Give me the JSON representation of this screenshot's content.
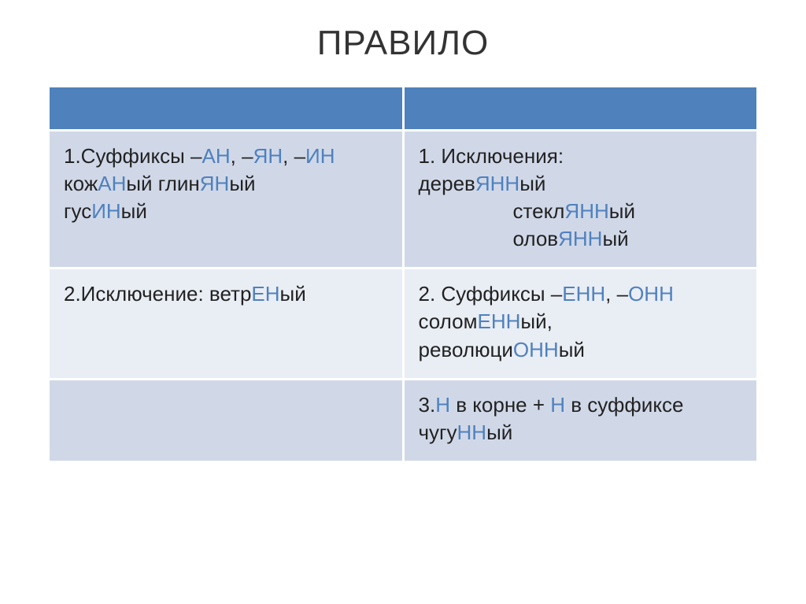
{
  "title": {
    "text": "ПРАВИЛО",
    "fontsize": 44,
    "color": "#333333"
  },
  "table": {
    "border_color": "#ffffff",
    "border_width": 3,
    "header_bg": "#4f81bd",
    "body_bg_a": "#d0d8e8",
    "body_bg_b": "#e9edf4",
    "text_color": "#222222",
    "highlight_color": "#4f81bd",
    "cell_fontsize": 26,
    "cell_padding": "14px 16px 18px 18px",
    "columns": 2,
    "column_widths": [
      "50%",
      "50%"
    ]
  },
  "rows": {
    "r1c1": {
      "line1a": "1.Суффиксы –",
      "line1_an": "АН",
      "line1b": ", –",
      "line1_yan": "ЯН",
      "line1c": ", –",
      "line1_in": "ИН",
      "line2a": "кож",
      "line2_an": "АН",
      "line2b": "ый   глин",
      "line2_yan": "ЯН",
      "line2c": "ый",
      "line3a": "гус",
      "line3_in": "ИН",
      "line3b": "ый"
    },
    "r1c2": {
      "line1": "1. Исключения:",
      "line2a": "дерев",
      "line2_hl": "ЯНН",
      "line2b": "ый",
      "line3a": "стекл",
      "line3_hl": "ЯНН",
      "line3b": "ый",
      "line4a": "олов",
      "line4_hl": "ЯНН",
      "line4b": "ый"
    },
    "r2c1": {
      "line1a": "2.Исключение: ветр",
      "line1_hl": "ЕН",
      "line1b": "ый"
    },
    "r2c2": {
      "line1a": "2. Суффиксы –",
      "line1_enn": "ЕНН",
      "line1b": ", –",
      "line1_onn": "ОНН",
      "line2a": "солом",
      "line2_hl": "ЕНН",
      "line2b": "ый,",
      "line3a": "революци",
      "line3_hl": "ОНН",
      "line3b": "ый"
    },
    "r3c2": {
      "line1a": "3.",
      "line1_n1": "Н",
      "line1b": " в корне + ",
      "line1_n2": "Н",
      "line1c": " в суффиксе",
      "line2a": "чугу",
      "line2_hl": "НН",
      "line2b": "ый"
    }
  }
}
